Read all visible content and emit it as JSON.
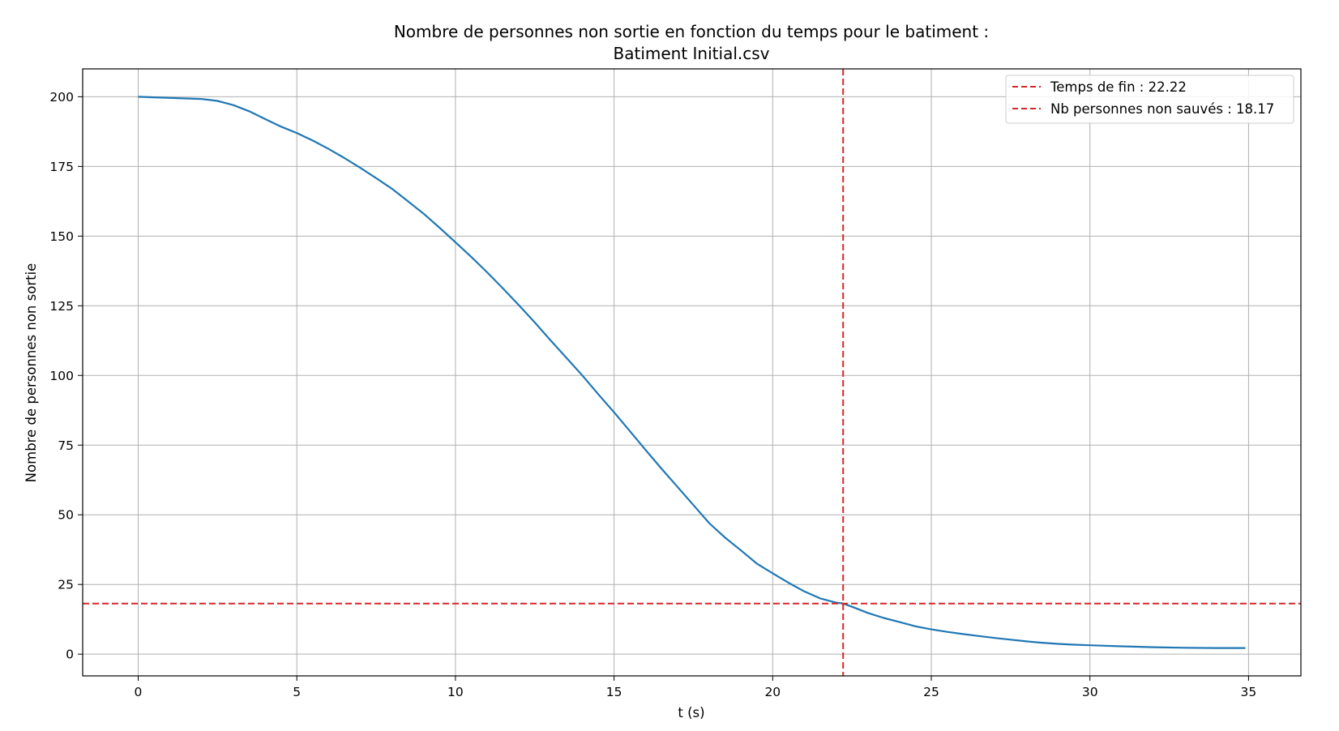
{
  "chart_data": {
    "type": "line",
    "title_line1": "Nombre de personnes non sortie en fonction du temps pour le batiment :",
    "title_line2": "Batiment Initial.csv",
    "xlabel": "t (s)",
    "ylabel": "Nombre de personnes non sortie",
    "xlim": [
      -1.75,
      36.65
    ],
    "ylim": [
      -7.8,
      210
    ],
    "xticks": [
      0,
      5,
      10,
      15,
      20,
      25,
      30,
      35
    ],
    "yticks": [
      0,
      25,
      50,
      75,
      100,
      125,
      150,
      175,
      200
    ],
    "grid": true,
    "legend_position": "top-right",
    "series": [
      {
        "color": "#1f77b4",
        "x": [
          0,
          0.5,
          1,
          1.5,
          2,
          2.5,
          3,
          3.5,
          4,
          4.5,
          5,
          5.5,
          6,
          6.5,
          7,
          7.5,
          8,
          8.5,
          9,
          9.5,
          10,
          10.5,
          11,
          11.5,
          12,
          12.5,
          13,
          13.5,
          14,
          14.5,
          15,
          15.5,
          16,
          16.5,
          17,
          17.5,
          18,
          18.5,
          19,
          19.5,
          20,
          20.5,
          21,
          21.5,
          22,
          22.22,
          22.5,
          23,
          23.5,
          24,
          24.5,
          25,
          25.5,
          26,
          26.5,
          27,
          27.5,
          28,
          28.5,
          29,
          29.5,
          30,
          31,
          32,
          33,
          34,
          34.9
        ],
        "y": [
          200,
          199.8,
          199.6,
          199.4,
          199.2,
          198.5,
          197,
          194.8,
          192,
          189.3,
          187,
          184.3,
          181.3,
          178,
          174.5,
          170.8,
          167,
          162.5,
          158,
          153,
          147.8,
          142.5,
          137,
          131.2,
          125.2,
          119,
          112.6,
          106.3,
          100,
          93.3,
          86.8,
          80,
          73.2,
          66.5,
          60,
          53.5,
          47,
          41.8,
          37.2,
          32.5,
          29,
          25.6,
          22.5,
          20,
          18.5,
          18.17,
          17,
          14.8,
          13,
          11.5,
          10,
          8.9,
          8,
          7.2,
          6.5,
          5.8,
          5.2,
          4.6,
          4.1,
          3.7,
          3.4,
          3.2,
          2.8,
          2.5,
          2.3,
          2.2,
          2.2
        ]
      }
    ],
    "reference_lines": [
      {
        "orientation": "vertical",
        "value": 22.22,
        "color": "#d62728",
        "label": "Temps de fin : 22.22"
      },
      {
        "orientation": "horizontal",
        "value": 18.17,
        "color": "#d62728",
        "label": "Nb personnes non sauvés : 18.17"
      }
    ]
  }
}
